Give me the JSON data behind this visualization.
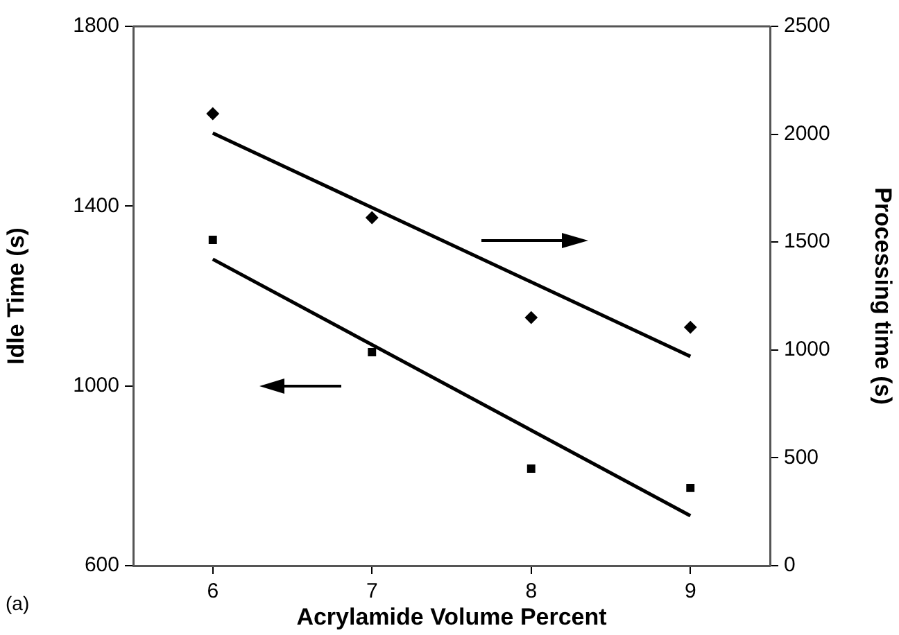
{
  "chart_data": {
    "type": "scatter",
    "xlabel": "Acrylamide Volume Percent",
    "ylabel": "Idle Time (s)",
    "y2label": "Processing time (s)",
    "annotations": [
      "(a)"
    ],
    "xlim": [
      5.5,
      9.5
    ],
    "xticks": [
      6,
      7,
      8,
      9
    ],
    "ylim": [
      600,
      1800
    ],
    "yticks": [
      600,
      1000,
      1400,
      1800
    ],
    "y2lim": [
      0,
      2500
    ],
    "y2ticks": [
      0,
      500,
      1000,
      1500,
      2000,
      2500
    ],
    "grid": false,
    "legend": false,
    "series": [
      {
        "type": "scatter",
        "marker": "square",
        "color": "#000000",
        "x": [
          6,
          7,
          8,
          9
        ],
        "values": [
          1325,
          1075,
          816,
          773
        ]
      },
      {
        "type": "line",
        "marker": "none",
        "color": "#000000",
        "x": [
          6,
          9
        ],
        "values": [
          1282,
          711
        ]
      },
      {
        "type": "scatter",
        "marker": "diamond",
        "color": "#000000",
        "axis": "y2",
        "x": [
          6,
          7,
          8,
          9
        ],
        "values": [
          2095,
          1613,
          1150,
          1105
        ]
      },
      {
        "type": "line",
        "marker": "none",
        "color": "#000000",
        "axis": "y2",
        "x": [
          6,
          9
        ],
        "values": [
          2005,
          970
        ]
      }
    ]
  }
}
